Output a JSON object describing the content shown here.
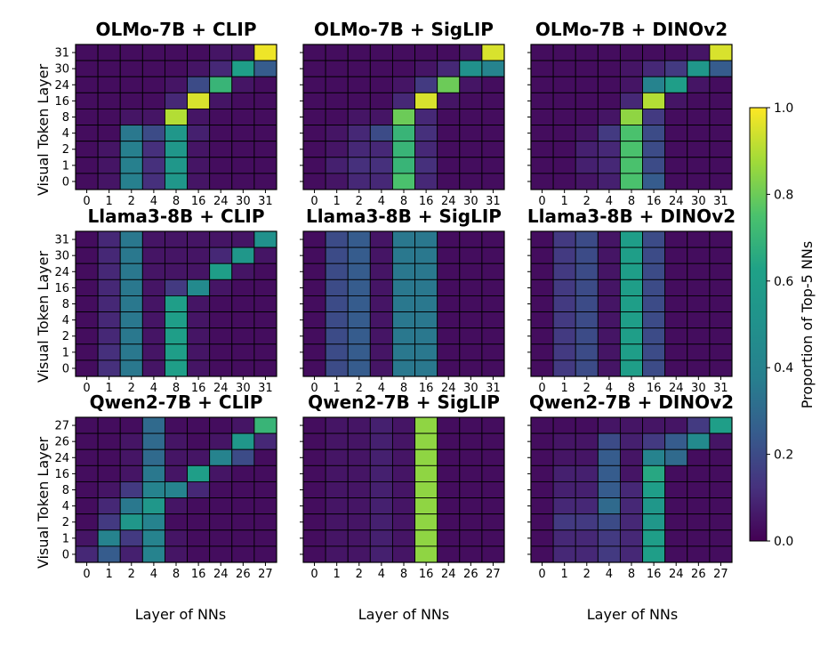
{
  "colorbar": {
    "label": "Proportion of Top-5 NNs",
    "ticks": [
      "0.0",
      "0.2",
      "0.4",
      "0.6",
      "0.8",
      "1.0"
    ],
    "range": [
      0,
      1
    ],
    "colormap": "viridis"
  },
  "axis_labels": {
    "ylabel": "Visual Token Layer",
    "xlabel": "Layer of NNs"
  },
  "chart_data": [
    {
      "type": "heatmap",
      "title": "OLMo-7B + CLIP",
      "x_ticks": [
        "0",
        "1",
        "2",
        "4",
        "8",
        "16",
        "24",
        "30",
        "31"
      ],
      "y_ticks": [
        "31",
        "30",
        "24",
        "16",
        "8",
        "4",
        "2",
        "1",
        "0"
      ],
      "values": [
        [
          0.03,
          0.03,
          0.03,
          0.03,
          0.03,
          0.03,
          0.05,
          0.05,
          0.98
        ],
        [
          0.03,
          0.03,
          0.03,
          0.03,
          0.03,
          0.05,
          0.1,
          0.6,
          0.25
        ],
        [
          0.03,
          0.03,
          0.03,
          0.03,
          0.05,
          0.2,
          0.7,
          0.05,
          0.03
        ],
        [
          0.03,
          0.03,
          0.03,
          0.03,
          0.1,
          0.95,
          0.05,
          0.03,
          0.03
        ],
        [
          0.03,
          0.03,
          0.05,
          0.05,
          0.9,
          0.05,
          0.03,
          0.03,
          0.03
        ],
        [
          0.03,
          0.03,
          0.35,
          0.2,
          0.55,
          0.08,
          0.03,
          0.03,
          0.03
        ],
        [
          0.03,
          0.05,
          0.38,
          0.12,
          0.55,
          0.05,
          0.03,
          0.03,
          0.03
        ],
        [
          0.03,
          0.05,
          0.38,
          0.12,
          0.55,
          0.05,
          0.03,
          0.03,
          0.03
        ],
        [
          0.03,
          0.05,
          0.38,
          0.12,
          0.55,
          0.05,
          0.03,
          0.03,
          0.03
        ]
      ]
    },
    {
      "type": "heatmap",
      "title": "OLMo-7B + SigLIP",
      "x_ticks": [
        "0",
        "1",
        "2",
        "4",
        "8",
        "16",
        "24",
        "30",
        "31"
      ],
      "y_ticks": [
        "31",
        "30",
        "24",
        "16",
        "8",
        "4",
        "2",
        "1",
        "0"
      ],
      "values": [
        [
          0.03,
          0.03,
          0.03,
          0.03,
          0.03,
          0.03,
          0.03,
          0.05,
          0.95
        ],
        [
          0.03,
          0.03,
          0.03,
          0.03,
          0.03,
          0.05,
          0.1,
          0.5,
          0.4
        ],
        [
          0.03,
          0.03,
          0.03,
          0.03,
          0.05,
          0.15,
          0.8,
          0.05,
          0.03
        ],
        [
          0.03,
          0.03,
          0.03,
          0.03,
          0.1,
          0.95,
          0.05,
          0.03,
          0.03
        ],
        [
          0.03,
          0.03,
          0.05,
          0.05,
          0.8,
          0.1,
          0.03,
          0.03,
          0.03
        ],
        [
          0.03,
          0.05,
          0.1,
          0.2,
          0.7,
          0.12,
          0.03,
          0.03,
          0.03
        ],
        [
          0.03,
          0.05,
          0.1,
          0.1,
          0.7,
          0.1,
          0.03,
          0.03,
          0.03
        ],
        [
          0.03,
          0.08,
          0.12,
          0.12,
          0.7,
          0.12,
          0.03,
          0.03,
          0.03
        ],
        [
          0.03,
          0.05,
          0.1,
          0.1,
          0.75,
          0.1,
          0.03,
          0.03,
          0.03
        ]
      ]
    },
    {
      "type": "heatmap",
      "title": "OLMo-7B + DINOv2",
      "x_ticks": [
        "0",
        "1",
        "2",
        "4",
        "8",
        "16",
        "24",
        "30",
        "31"
      ],
      "y_ticks": [
        "31",
        "30",
        "24",
        "16",
        "8",
        "4",
        "2",
        "1",
        "0"
      ],
      "values": [
        [
          0.03,
          0.03,
          0.03,
          0.03,
          0.03,
          0.03,
          0.03,
          0.05,
          0.95
        ],
        [
          0.03,
          0.03,
          0.03,
          0.03,
          0.05,
          0.1,
          0.15,
          0.55,
          0.25
        ],
        [
          0.03,
          0.03,
          0.03,
          0.03,
          0.05,
          0.4,
          0.6,
          0.05,
          0.03
        ],
        [
          0.03,
          0.03,
          0.03,
          0.03,
          0.1,
          0.9,
          0.05,
          0.03,
          0.03
        ],
        [
          0.03,
          0.03,
          0.03,
          0.05,
          0.85,
          0.15,
          0.03,
          0.03,
          0.03
        ],
        [
          0.03,
          0.03,
          0.05,
          0.15,
          0.75,
          0.2,
          0.03,
          0.03,
          0.03
        ],
        [
          0.03,
          0.03,
          0.08,
          0.1,
          0.75,
          0.2,
          0.03,
          0.03,
          0.03
        ],
        [
          0.03,
          0.03,
          0.08,
          0.1,
          0.75,
          0.2,
          0.03,
          0.03,
          0.03
        ],
        [
          0.03,
          0.03,
          0.05,
          0.08,
          0.75,
          0.25,
          0.03,
          0.03,
          0.03
        ]
      ]
    },
    {
      "type": "heatmap",
      "title": "Llama3-8B + CLIP",
      "x_ticks": [
        "0",
        "1",
        "2",
        "4",
        "8",
        "16",
        "24",
        "30",
        "31"
      ],
      "y_ticks": [
        "31",
        "30",
        "24",
        "16",
        "8",
        "4",
        "2",
        "1",
        "0"
      ],
      "values": [
        [
          0.03,
          0.1,
          0.35,
          0.05,
          0.05,
          0.05,
          0.05,
          0.05,
          0.5
        ],
        [
          0.03,
          0.1,
          0.35,
          0.05,
          0.05,
          0.05,
          0.1,
          0.55,
          0.05
        ],
        [
          0.03,
          0.1,
          0.35,
          0.05,
          0.05,
          0.05,
          0.6,
          0.05,
          0.03
        ],
        [
          0.03,
          0.1,
          0.35,
          0.05,
          0.15,
          0.45,
          0.05,
          0.03,
          0.03
        ],
        [
          0.03,
          0.1,
          0.35,
          0.05,
          0.6,
          0.05,
          0.03,
          0.03,
          0.03
        ],
        [
          0.03,
          0.1,
          0.35,
          0.05,
          0.6,
          0.05,
          0.03,
          0.03,
          0.03
        ],
        [
          0.03,
          0.1,
          0.35,
          0.05,
          0.6,
          0.05,
          0.03,
          0.03,
          0.03
        ],
        [
          0.03,
          0.12,
          0.35,
          0.05,
          0.6,
          0.05,
          0.03,
          0.03,
          0.03
        ],
        [
          0.03,
          0.12,
          0.35,
          0.05,
          0.6,
          0.05,
          0.03,
          0.03,
          0.03
        ]
      ]
    },
    {
      "type": "heatmap",
      "title": "Llama3-8B + SigLIP",
      "x_ticks": [
        "0",
        "1",
        "2",
        "4",
        "8",
        "16",
        "24",
        "30",
        "31"
      ],
      "y_ticks": [
        "31",
        "30",
        "24",
        "16",
        "8",
        "4",
        "2",
        "1",
        "0"
      ],
      "values": [
        [
          0.03,
          0.2,
          0.25,
          0.05,
          0.35,
          0.35,
          0.03,
          0.03,
          0.03
        ],
        [
          0.03,
          0.2,
          0.25,
          0.05,
          0.35,
          0.35,
          0.03,
          0.03,
          0.03
        ],
        [
          0.03,
          0.2,
          0.25,
          0.05,
          0.35,
          0.35,
          0.03,
          0.03,
          0.03
        ],
        [
          0.03,
          0.2,
          0.25,
          0.05,
          0.35,
          0.35,
          0.03,
          0.03,
          0.03
        ],
        [
          0.03,
          0.2,
          0.25,
          0.05,
          0.35,
          0.35,
          0.03,
          0.03,
          0.03
        ],
        [
          0.03,
          0.2,
          0.25,
          0.05,
          0.35,
          0.35,
          0.03,
          0.03,
          0.03
        ],
        [
          0.03,
          0.2,
          0.25,
          0.05,
          0.35,
          0.35,
          0.03,
          0.03,
          0.03
        ],
        [
          0.03,
          0.2,
          0.25,
          0.05,
          0.35,
          0.35,
          0.03,
          0.03,
          0.03
        ],
        [
          0.03,
          0.2,
          0.25,
          0.05,
          0.35,
          0.35,
          0.03,
          0.03,
          0.03
        ]
      ]
    },
    {
      "type": "heatmap",
      "title": "Llama3-8B + DINOv2",
      "x_ticks": [
        "0",
        "1",
        "2",
        "4",
        "8",
        "16",
        "24",
        "30",
        "31"
      ],
      "y_ticks": [
        "31",
        "30",
        "24",
        "16",
        "8",
        "4",
        "2",
        "1",
        "0"
      ],
      "values": [
        [
          0.03,
          0.15,
          0.2,
          0.05,
          0.6,
          0.2,
          0.03,
          0.03,
          0.03
        ],
        [
          0.03,
          0.15,
          0.2,
          0.05,
          0.6,
          0.2,
          0.03,
          0.03,
          0.03
        ],
        [
          0.03,
          0.15,
          0.2,
          0.05,
          0.6,
          0.2,
          0.03,
          0.03,
          0.03
        ],
        [
          0.03,
          0.15,
          0.2,
          0.05,
          0.6,
          0.2,
          0.03,
          0.03,
          0.03
        ],
        [
          0.03,
          0.15,
          0.2,
          0.05,
          0.6,
          0.2,
          0.03,
          0.03,
          0.03
        ],
        [
          0.03,
          0.15,
          0.2,
          0.05,
          0.6,
          0.2,
          0.03,
          0.03,
          0.03
        ],
        [
          0.03,
          0.15,
          0.2,
          0.05,
          0.6,
          0.2,
          0.03,
          0.03,
          0.03
        ],
        [
          0.03,
          0.15,
          0.2,
          0.05,
          0.6,
          0.2,
          0.03,
          0.03,
          0.03
        ],
        [
          0.03,
          0.15,
          0.2,
          0.05,
          0.6,
          0.2,
          0.03,
          0.03,
          0.03
        ]
      ]
    },
    {
      "type": "heatmap",
      "title": "Qwen2-7B + CLIP",
      "x_ticks": [
        "0",
        "1",
        "2",
        "4",
        "8",
        "16",
        "24",
        "26",
        "27"
      ],
      "y_ticks": [
        "27",
        "26",
        "24",
        "16",
        "8",
        "4",
        "2",
        "1",
        "0"
      ],
      "values": [
        [
          0.03,
          0.03,
          0.03,
          0.3,
          0.03,
          0.03,
          0.03,
          0.05,
          0.7
        ],
        [
          0.03,
          0.03,
          0.05,
          0.3,
          0.05,
          0.03,
          0.05,
          0.55,
          0.1
        ],
        [
          0.03,
          0.03,
          0.05,
          0.3,
          0.05,
          0.05,
          0.4,
          0.2,
          0.03
        ],
        [
          0.03,
          0.03,
          0.05,
          0.35,
          0.05,
          0.6,
          0.05,
          0.03,
          0.03
        ],
        [
          0.03,
          0.05,
          0.15,
          0.4,
          0.4,
          0.1,
          0.03,
          0.03,
          0.03
        ],
        [
          0.03,
          0.1,
          0.35,
          0.55,
          0.05,
          0.03,
          0.03,
          0.03,
          0.03
        ],
        [
          0.03,
          0.15,
          0.55,
          0.4,
          0.03,
          0.03,
          0.03,
          0.03,
          0.03
        ],
        [
          0.05,
          0.4,
          0.15,
          0.4,
          0.05,
          0.03,
          0.03,
          0.03,
          0.03
        ],
        [
          0.1,
          0.25,
          0.08,
          0.4,
          0.05,
          0.03,
          0.03,
          0.03,
          0.03
        ]
      ]
    },
    {
      "type": "heatmap",
      "title": "Qwen2-7B + SigLIP",
      "x_ticks": [
        "0",
        "1",
        "2",
        "4",
        "8",
        "16",
        "24",
        "26",
        "27"
      ],
      "y_ticks": [
        "27",
        "26",
        "24",
        "16",
        "8",
        "4",
        "2",
        "1",
        "0"
      ],
      "values": [
        [
          0.03,
          0.05,
          0.05,
          0.08,
          0.05,
          0.85,
          0.03,
          0.03,
          0.03
        ],
        [
          0.03,
          0.05,
          0.05,
          0.08,
          0.05,
          0.85,
          0.03,
          0.03,
          0.03
        ],
        [
          0.03,
          0.05,
          0.05,
          0.08,
          0.05,
          0.85,
          0.03,
          0.03,
          0.03
        ],
        [
          0.03,
          0.05,
          0.05,
          0.08,
          0.05,
          0.85,
          0.03,
          0.03,
          0.03
        ],
        [
          0.03,
          0.05,
          0.05,
          0.08,
          0.05,
          0.85,
          0.03,
          0.03,
          0.03
        ],
        [
          0.03,
          0.05,
          0.05,
          0.08,
          0.05,
          0.85,
          0.03,
          0.03,
          0.03
        ],
        [
          0.03,
          0.05,
          0.05,
          0.08,
          0.05,
          0.85,
          0.03,
          0.03,
          0.03
        ],
        [
          0.03,
          0.05,
          0.05,
          0.08,
          0.05,
          0.85,
          0.03,
          0.03,
          0.03
        ],
        [
          0.03,
          0.05,
          0.05,
          0.08,
          0.05,
          0.85,
          0.03,
          0.03,
          0.03
        ]
      ]
    },
    {
      "type": "heatmap",
      "title": "Qwen2-7B + DINOv2",
      "x_ticks": [
        "0",
        "1",
        "2",
        "4",
        "8",
        "16",
        "24",
        "26",
        "27"
      ],
      "y_ticks": [
        "27",
        "26",
        "24",
        "16",
        "8",
        "4",
        "2",
        "1",
        "0"
      ],
      "values": [
        [
          0.03,
          0.03,
          0.03,
          0.05,
          0.05,
          0.05,
          0.05,
          0.15,
          0.6
        ],
        [
          0.03,
          0.05,
          0.05,
          0.2,
          0.08,
          0.15,
          0.25,
          0.45,
          0.05
        ],
        [
          0.03,
          0.05,
          0.05,
          0.25,
          0.05,
          0.4,
          0.3,
          0.03,
          0.03
        ],
        [
          0.03,
          0.08,
          0.08,
          0.25,
          0.05,
          0.65,
          0.03,
          0.03,
          0.03
        ],
        [
          0.03,
          0.08,
          0.08,
          0.25,
          0.1,
          0.6,
          0.03,
          0.03,
          0.03
        ],
        [
          0.03,
          0.1,
          0.1,
          0.3,
          0.1,
          0.55,
          0.03,
          0.03,
          0.03
        ],
        [
          0.03,
          0.15,
          0.15,
          0.2,
          0.1,
          0.55,
          0.03,
          0.03,
          0.03
        ],
        [
          0.03,
          0.1,
          0.1,
          0.15,
          0.1,
          0.6,
          0.03,
          0.03,
          0.03
        ],
        [
          0.03,
          0.1,
          0.1,
          0.15,
          0.1,
          0.6,
          0.03,
          0.03,
          0.03
        ]
      ]
    }
  ]
}
